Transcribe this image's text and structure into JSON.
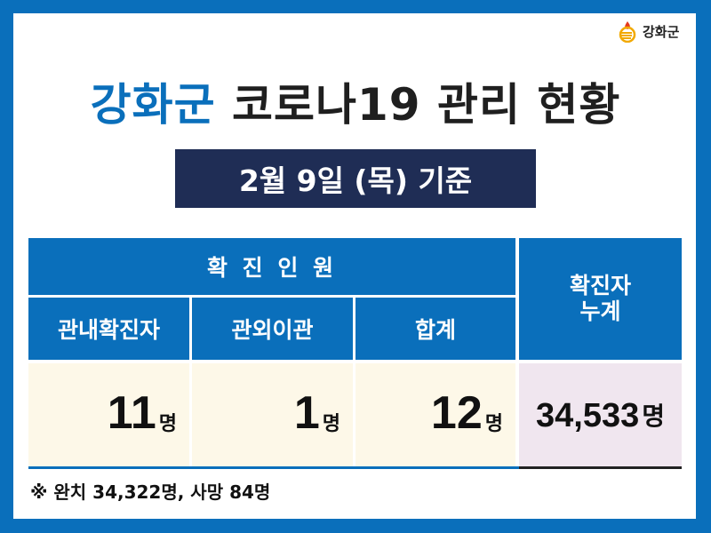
{
  "logo": {
    "text": "강화군",
    "icon": "ganghwa-flame-logo-icon"
  },
  "title": {
    "highlight": "강화군",
    "rest": " 코로나19 관리 현황"
  },
  "date_label": "2월 9일 (목) 기준",
  "table": {
    "group_header": "확 진 인 원",
    "total_header": "확진자\n누계",
    "columns": [
      "관내확진자",
      "관외이관",
      "합계"
    ],
    "values": [
      {
        "n": "11",
        "u": "명"
      },
      {
        "n": "1",
        "u": "명"
      },
      {
        "n": "12",
        "u": "명"
      }
    ],
    "total": {
      "n": "34,533",
      "u": "명"
    }
  },
  "footnote": "※ 완치 34,322명, 사망 84명",
  "colors": {
    "frame": "#0a6fbb",
    "date_bg": "#1f2d55",
    "value_bg": "#fdf8e8",
    "total_bg": "#f0e6ef"
  }
}
